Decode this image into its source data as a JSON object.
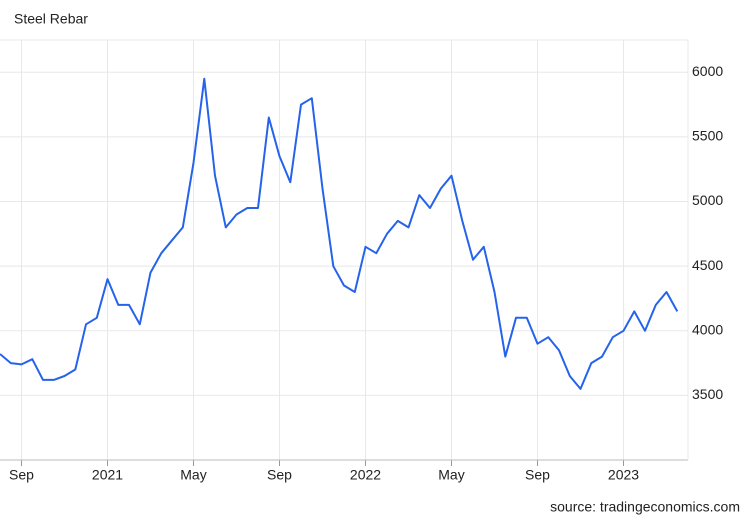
{
  "chart_data": {
    "type": "line",
    "title": "Steel Rebar",
    "source": "source: tradingeconomics.com",
    "x": [
      "2020-08",
      "2020-08",
      "2020-09",
      "2020-09",
      "2020-10",
      "2020-10",
      "2020-11",
      "2020-11",
      "2020-12",
      "2020-12",
      "2021-01",
      "2021-01",
      "2021-02",
      "2021-02",
      "2021-03",
      "2021-03",
      "2021-04",
      "2021-04",
      "2021-05",
      "2021-05",
      "2021-06",
      "2021-06",
      "2021-07",
      "2021-07",
      "2021-08",
      "2021-08",
      "2021-09",
      "2021-09",
      "2021-10",
      "2021-10",
      "2021-11",
      "2021-11",
      "2021-12",
      "2021-12",
      "2022-01",
      "2022-01",
      "2022-02",
      "2022-02",
      "2022-03",
      "2022-03",
      "2022-04",
      "2022-04",
      "2022-05",
      "2022-05",
      "2022-06",
      "2022-06",
      "2022-07",
      "2022-07",
      "2022-08",
      "2022-08",
      "2022-09",
      "2022-09",
      "2022-10",
      "2022-10",
      "2022-11",
      "2022-11",
      "2022-12",
      "2022-12",
      "2023-01",
      "2023-01",
      "2023-02",
      "2023-02",
      "2023-03",
      "2023-03"
    ],
    "series": [
      {
        "name": "Steel Rebar",
        "color": "#2563eb",
        "values": [
          3820,
          3750,
          3740,
          3780,
          3620,
          3620,
          3650,
          3700,
          4050,
          4100,
          4400,
          4200,
          4200,
          4050,
          4450,
          4600,
          4700,
          4800,
          5300,
          5950,
          5200,
          4800,
          4900,
          4950,
          4950,
          5650,
          5350,
          5150,
          5750,
          5800,
          5100,
          4500,
          4350,
          4300,
          4650,
          4600,
          4750,
          4850,
          4800,
          5050,
          4950,
          5100,
          5200,
          4850,
          4550,
          4650,
          4300,
          3800,
          4100,
          4100,
          3900,
          3950,
          3850,
          3650,
          3550,
          3750,
          3800,
          3950,
          4000,
          4150,
          4000,
          4200,
          4300,
          4150
        ]
      }
    ],
    "xlim": [
      "2020-08",
      "2023-04"
    ],
    "xticks": [
      {
        "value": "2020-09",
        "label": "Sep"
      },
      {
        "value": "2021-01",
        "label": "2021"
      },
      {
        "value": "2021-05",
        "label": "May"
      },
      {
        "value": "2021-09",
        "label": "Sep"
      },
      {
        "value": "2022-01",
        "label": "2022"
      },
      {
        "value": "2022-05",
        "label": "May"
      },
      {
        "value": "2022-09",
        "label": "Sep"
      },
      {
        "value": "2023-01",
        "label": "2023"
      }
    ],
    "ylim": [
      3000,
      6250
    ],
    "yticks": [
      3500,
      4000,
      4500,
      5000,
      5500,
      6000
    ],
    "grid": true
  }
}
